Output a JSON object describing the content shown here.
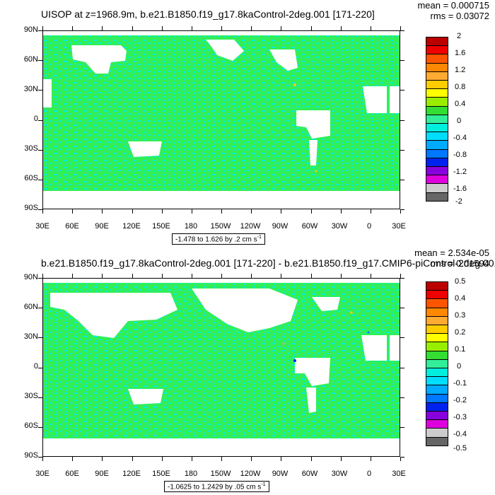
{
  "panels": [
    {
      "title": "UISOP at z=1968.9m, b.e21.B1850.f19_g17.8kaControl-2deg.001 [171-220]",
      "mean": "mean = 0.000715",
      "rms": "rms = 0.03072",
      "range": "-1.478 to 1.626 by .2 cm s",
      "range_unit_sup": "-1",
      "colorbar_labels": [
        "2",
        "1.6",
        "1.2",
        "0.8",
        "0.4",
        "0",
        "-0.4",
        "-0.8",
        "-1.2",
        "-1.6",
        "-2"
      ]
    },
    {
      "title": "b.e21.B1850.f19_g17.8kaControl-2deg.001 [171-220] - b.e21.B1850.f19_g17.CMIP6-piControl-2deg.001",
      "mean": "mean = 2.534e-05",
      "rms": "rms = 0.01594",
      "range": "-1.0625 to 1.2429 by .05 cm s",
      "range_unit_sup": "-1",
      "colorbar_labels": [
        "0.5",
        "0.4",
        "0.3",
        "0.2",
        "0.1",
        "0",
        "-0.1",
        "-0.2",
        "-0.3",
        "-0.4",
        "-0.5"
      ]
    }
  ],
  "lat_labels": [
    "90N",
    "60N",
    "30N",
    "0",
    "30S",
    "60S",
    "90S"
  ],
  "lon_labels": [
    "30E",
    "60E",
    "90E",
    "120E",
    "150E",
    "180",
    "150W",
    "120W",
    "90W",
    "60W",
    "30W",
    "0",
    "30E"
  ],
  "colors": {
    "land": "#ffffff",
    "ocean_green": "#33ee55",
    "ocean_cyan": "#00eedd",
    "colorbar": [
      "#bb0000",
      "#ee0000",
      "#ff5500",
      "#ff8800",
      "#ffaa33",
      "#ffcc00",
      "#ffff00",
      "#99ee00",
      "#33dd33",
      "#33ee99",
      "#00eedd",
      "#00ddff",
      "#00aaff",
      "#0077ff",
      "#0022ee",
      "#8800dd",
      "#dd00dd",
      "#cccccc",
      "#666666"
    ]
  }
}
